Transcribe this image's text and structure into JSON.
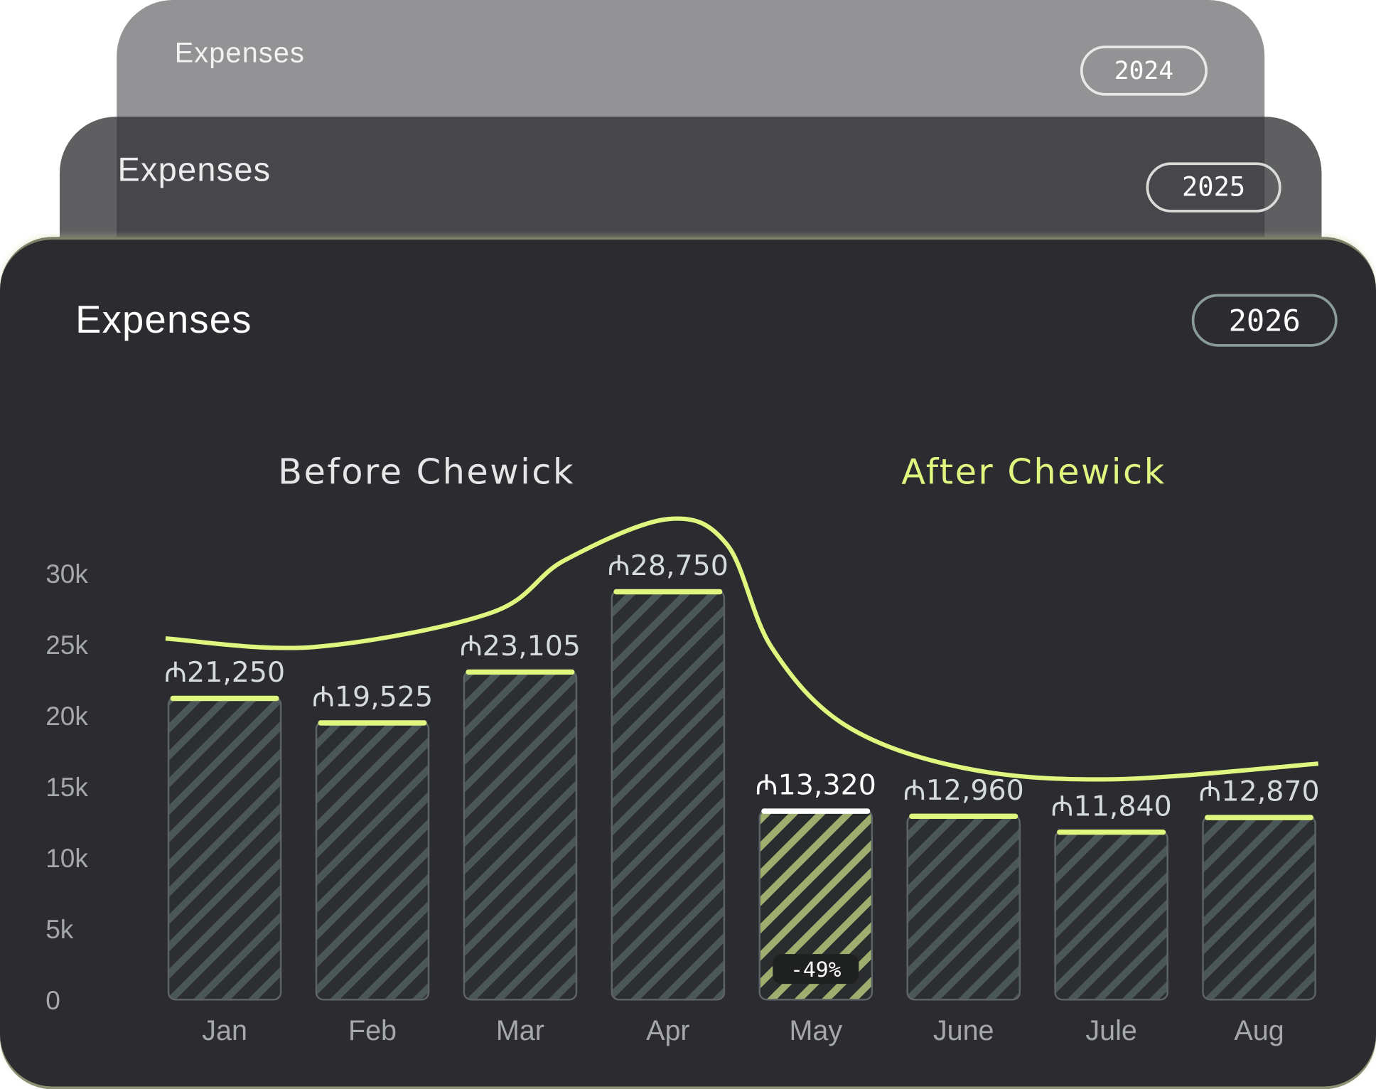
{
  "cards": [
    {
      "title": "Expenses",
      "year": "2024"
    },
    {
      "title": "Expenses",
      "year": "2025"
    },
    {
      "title": "Expenses",
      "year": "2026"
    }
  ],
  "colors": {
    "accent": "#dff77f",
    "card": "#2c2c30",
    "bar_stripe": "#4a5657",
    "highlight_stripe": "#9fae6e"
  },
  "chart_data": {
    "type": "bar",
    "title": "Expenses",
    "phases": [
      "Before Chewick",
      "After Chewick"
    ],
    "categories": [
      "Jan",
      "Feb",
      "Mar",
      "Apr",
      "May",
      "June",
      "Jule",
      "Aug"
    ],
    "values": [
      21250,
      19525,
      23105,
      28750,
      13320,
      12960,
      11840,
      12870
    ],
    "value_labels": [
      "₼21,250",
      "₼19,525",
      "₼23,105",
      "₼28,750",
      "₼13,320",
      "₼12,960",
      "₼11,840",
      "₼12,870"
    ],
    "highlight_index": 4,
    "highlight_badge": "-49%",
    "y_ticks": [
      "0",
      "5k",
      "10k",
      "15k",
      "20k",
      "25k",
      "30k"
    ],
    "ylim": [
      0,
      30000
    ],
    "trend_line": [
      [
        -0.4,
        25400
      ],
      [
        0.6,
        24800
      ],
      [
        1.8,
        27200
      ],
      [
        2.3,
        30900
      ],
      [
        3.0,
        33800
      ],
      [
        3.4,
        32000
      ],
      [
        3.7,
        24800
      ],
      [
        4.2,
        19300
      ],
      [
        5.0,
        16300
      ],
      [
        6.0,
        15500
      ],
      [
        7.4,
        16600
      ]
    ]
  }
}
